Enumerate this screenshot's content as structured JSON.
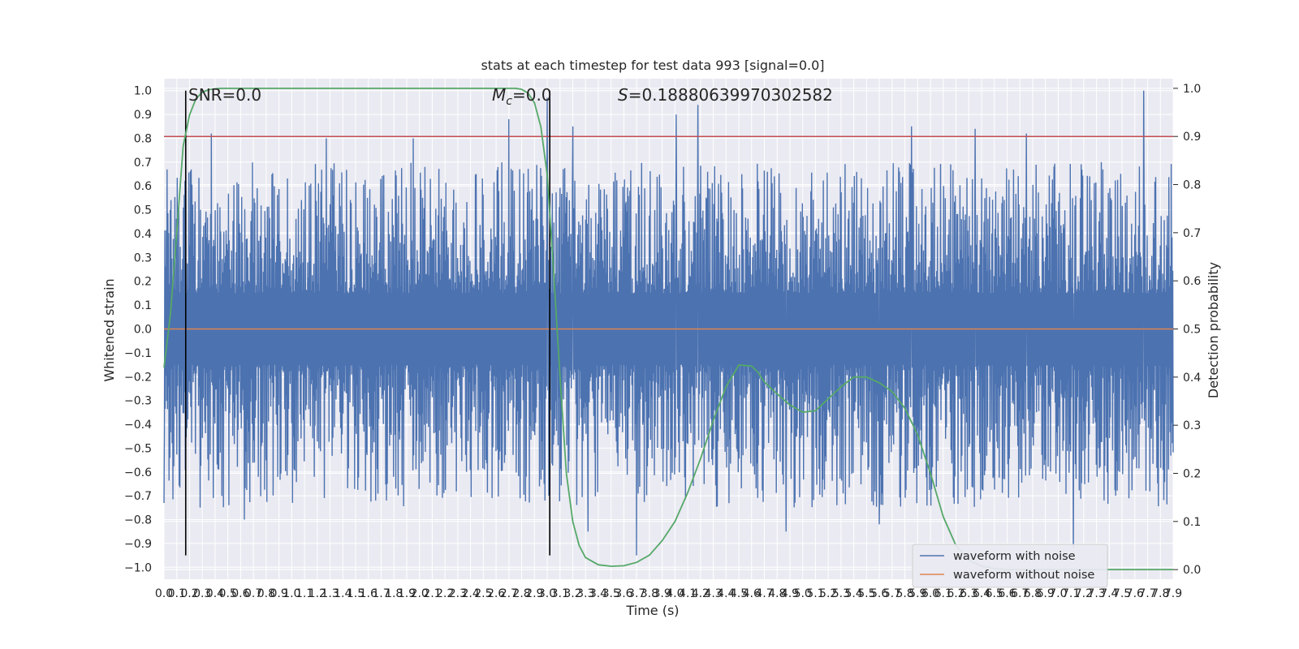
{
  "chart_data": {
    "type": "line",
    "title": "stats at each timestep for test data 993 [signal=0.0]",
    "xlabel": "Time (s)",
    "ylabel": "Whitened strain",
    "y2label": "Detection probability",
    "xlim": [
      0.0,
      7.9
    ],
    "ylim": [
      -1.05,
      1.05
    ],
    "y2lim": [
      -0.02,
      1.02
    ],
    "grid": true,
    "x_tick_step": 0.1,
    "x_ticks": [
      "0.0",
      "0.1",
      "0.2",
      "0.3",
      "0.4",
      "0.5",
      "0.6",
      "0.7",
      "0.8",
      "0.9",
      "1.0",
      "1.1",
      "1.2",
      "1.3",
      "1.4",
      "1.5",
      "1.6",
      "1.7",
      "1.8",
      "1.9",
      "2.0",
      "2.1",
      "2.2",
      "2.3",
      "2.4",
      "2.5",
      "2.6",
      "2.7",
      "2.8",
      "2.9",
      "3.0",
      "3.1",
      "3.2",
      "3.3",
      "3.4",
      "3.5",
      "3.6",
      "3.7",
      "3.8",
      "3.9",
      "4.0",
      "4.1",
      "4.2",
      "4.3",
      "4.4",
      "4.5",
      "4.6",
      "4.7",
      "4.8",
      "4.9",
      "5.0",
      "5.1",
      "5.2",
      "5.3",
      "5.4",
      "5.5",
      "5.6",
      "5.7",
      "5.8",
      "5.9",
      "6.0",
      "6.1",
      "6.2",
      "6.3",
      "6.4",
      "6.5",
      "6.6",
      "6.7",
      "6.8",
      "6.9",
      "7.0",
      "7.1",
      "7.2",
      "7.3",
      "7.4",
      "7.5",
      "7.6",
      "7.7",
      "7.8",
      "7.9"
    ],
    "y_ticks": [
      "1.0",
      "0.9",
      "0.8",
      "0.7",
      "0.6",
      "0.5",
      "0.4",
      "0.3",
      "0.2",
      "0.1",
      "0.0",
      "−0.1",
      "−0.2",
      "−0.3",
      "−0.4",
      "−0.5",
      "−0.6",
      "−0.7",
      "−0.8",
      "−0.9",
      "−1.0"
    ],
    "y2_ticks": [
      "1.0",
      "0.9",
      "0.8",
      "0.7",
      "0.6",
      "0.5",
      "0.4",
      "0.3",
      "0.2",
      "0.1",
      "0.0"
    ],
    "series": [
      {
        "name": "waveform with noise",
        "color": "#4c72b0",
        "description_envelope": {
          "typical_upper": [
            0.15,
            0.7
          ],
          "typical_lower": [
            -0.15,
            -0.75
          ],
          "spikes": [
            {
              "x": 0.0,
              "y": -0.73
            },
            {
              "x": 0.05,
              "y": 0.5
            },
            {
              "x": 0.17,
              "y": 0.8
            },
            {
              "x": 0.37,
              "y": 0.82
            },
            {
              "x": 0.63,
              "y": -0.8
            },
            {
              "x": 1.27,
              "y": 0.8
            },
            {
              "x": 1.95,
              "y": 0.8
            },
            {
              "x": 2.7,
              "y": 0.88
            },
            {
              "x": 3.0,
              "y": 0.97
            },
            {
              "x": 3.2,
              "y": 0.85
            },
            {
              "x": 3.32,
              "y": -0.85
            },
            {
              "x": 3.7,
              "y": -0.95
            },
            {
              "x": 4.01,
              "y": 0.9
            },
            {
              "x": 4.18,
              "y": 0.94
            },
            {
              "x": 4.87,
              "y": -0.85
            },
            {
              "x": 5.6,
              "y": -0.82
            },
            {
              "x": 5.85,
              "y": 0.85
            },
            {
              "x": 6.35,
              "y": 0.84
            },
            {
              "x": 6.75,
              "y": 0.82
            },
            {
              "x": 7.12,
              "y": -0.92
            },
            {
              "x": 7.67,
              "y": 1.0
            }
          ]
        }
      },
      {
        "name": "waveform without noise",
        "color": "#dd8452",
        "x": [
          0.0,
          7.9
        ],
        "y": [
          0.0,
          0.0
        ]
      },
      {
        "name": "detection probability",
        "color": "#55a868",
        "axis": "right",
        "x": [
          0.0,
          0.05,
          0.1,
          0.15,
          0.2,
          0.25,
          0.3,
          0.35,
          0.4,
          0.45,
          0.5,
          0.55,
          0.6,
          2.7,
          2.75,
          2.8,
          2.85,
          2.9,
          2.95,
          3.0,
          3.05,
          3.1,
          3.15,
          3.2,
          3.25,
          3.3,
          3.4,
          3.5,
          3.6,
          3.7,
          3.8,
          3.9,
          4.0,
          4.1,
          4.2,
          4.3,
          4.4,
          4.5,
          4.6,
          4.65,
          4.7,
          4.8,
          4.9,
          5.0,
          5.1,
          5.2,
          5.3,
          5.4,
          5.5,
          5.6,
          5.7,
          5.8,
          5.9,
          6.0,
          6.1,
          6.2,
          6.3,
          6.4,
          6.5,
          6.6,
          7.9
        ],
        "y": [
          0.42,
          0.53,
          0.7,
          0.88,
          0.945,
          0.978,
          0.992,
          0.997,
          0.999,
          1.0,
          1.0,
          1.0,
          1.0,
          1.0,
          1.0,
          0.998,
          0.99,
          0.97,
          0.92,
          0.82,
          0.62,
          0.4,
          0.2,
          0.1,
          0.05,
          0.025,
          0.01,
          0.007,
          0.008,
          0.015,
          0.03,
          0.06,
          0.1,
          0.16,
          0.23,
          0.31,
          0.38,
          0.425,
          0.423,
          0.41,
          0.39,
          0.365,
          0.342,
          0.327,
          0.33,
          0.355,
          0.38,
          0.4,
          0.4,
          0.388,
          0.37,
          0.335,
          0.28,
          0.2,
          0.11,
          0.05,
          0.02,
          0.007,
          0.002,
          0.0,
          0.0
        ]
      }
    ],
    "hlines": [
      {
        "axis": "right",
        "y": 0.9,
        "color": "#c44e52"
      }
    ],
    "vlines": [
      {
        "x": 0.17,
        "ymin": -0.95,
        "ymax": 1.0,
        "color": "#000000"
      },
      {
        "x": 3.02,
        "ymin": -0.95,
        "ymax": 1.0,
        "color": "#000000"
      }
    ],
    "annotations": [
      {
        "text": "SNR=0.0"
      },
      {
        "text_main": "M",
        "text_sub": "c",
        "text_rest": "=0.0"
      },
      {
        "text_main": "S",
        "text_rest": "=0.18880639970302582"
      }
    ],
    "legend": {
      "position": "lower-right",
      "entries": [
        "waveform with noise",
        "waveform without noise"
      ]
    },
    "facecolor": "#eaeaf2"
  }
}
